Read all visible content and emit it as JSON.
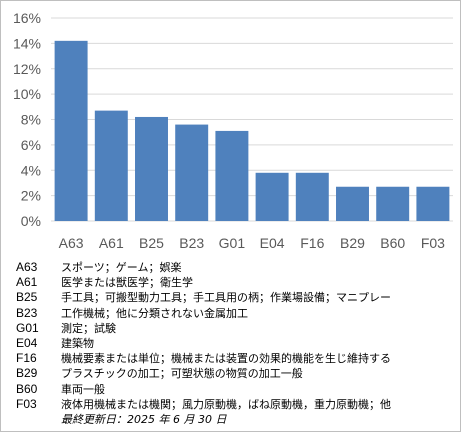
{
  "chart_data": {
    "type": "bar",
    "categories": [
      "A63",
      "A61",
      "B25",
      "B23",
      "G01",
      "E04",
      "F16",
      "B29",
      "B60",
      "F03"
    ],
    "values": [
      14.2,
      8.7,
      8.2,
      7.6,
      7.1,
      3.8,
      3.8,
      2.7,
      2.7,
      2.7
    ],
    "yticks": [
      "0%",
      "2%",
      "4%",
      "6%",
      "8%",
      "10%",
      "12%",
      "14%",
      "16%"
    ],
    "ylim": [
      0,
      16
    ],
    "grid": true,
    "bar_color": "#4f81bd",
    "grid_color": "#d9d9d9"
  },
  "legend": [
    {
      "code": "A63",
      "desc": "スポーツ；ゲーム；娯楽"
    },
    {
      "code": "A61",
      "desc": "医学または獣医学；衛生学"
    },
    {
      "code": "B25",
      "desc": "手工具；可搬型動力工具；手工具用の柄；作業場設備；マニプレー"
    },
    {
      "code": "B23",
      "desc": "工作機械；他に分類されない金属加工"
    },
    {
      "code": "G01",
      "desc": "測定；試験"
    },
    {
      "code": "E04",
      "desc": "建築物"
    },
    {
      "code": "F16",
      "desc": "機械要素または単位；機械または装置の効果的機能を生じ維持する"
    },
    {
      "code": "B29",
      "desc": "プラスチックの加工；可塑状態の物質の加工一般"
    },
    {
      "code": "B60",
      "desc": "車両一般"
    },
    {
      "code": "F03",
      "desc": "液体用機械または機関；風力原動機，ばね原動機，重力原動機；他"
    }
  ],
  "last_updated": "最終更新日：2025 年 6 月 30 日"
}
